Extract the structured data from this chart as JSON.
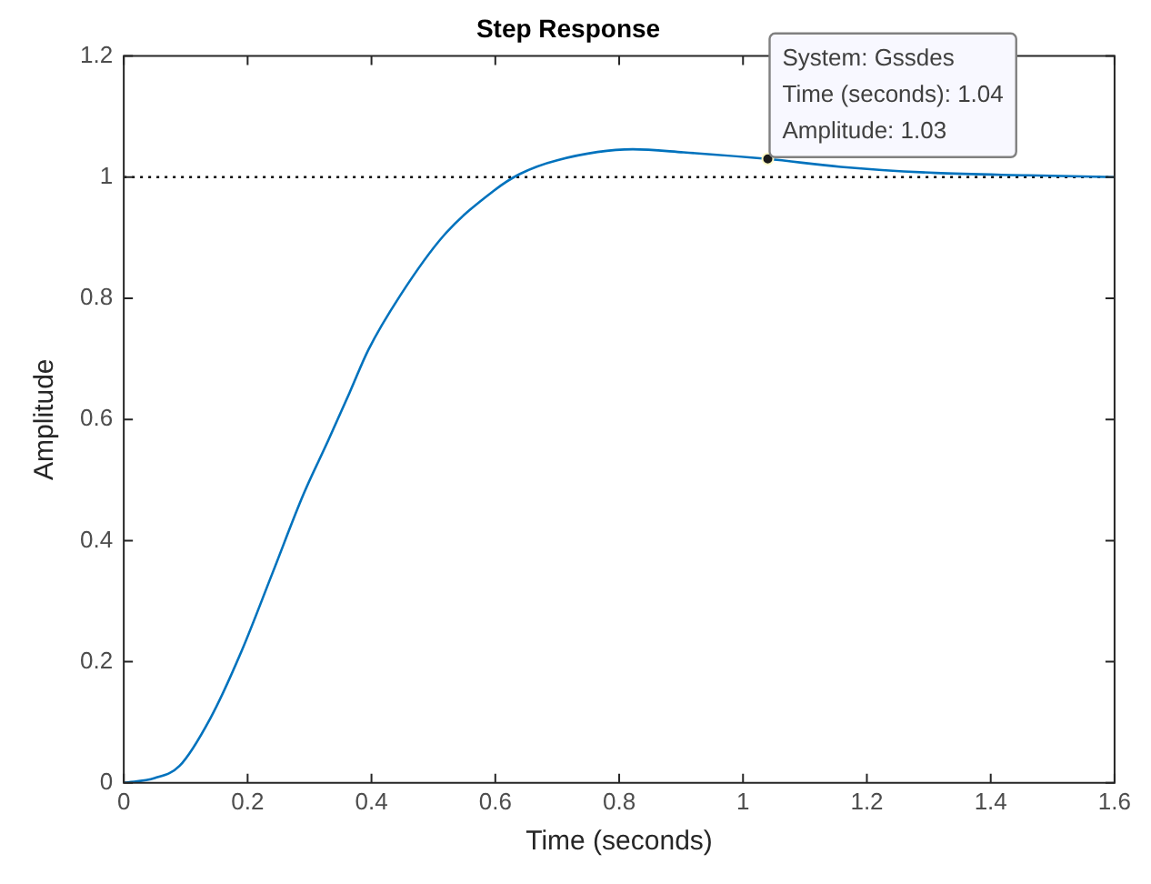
{
  "chart_data": {
    "type": "line",
    "title": "Step Response",
    "xlabel": "Time (seconds)",
    "ylabel": "Amplitude",
    "x": [
      0,
      0.05,
      0.09,
      0.14,
      0.19,
      0.24,
      0.29,
      0.33,
      0.365,
      0.395,
      0.446,
      0.517,
      0.598,
      0.639,
      0.7,
      0.822,
      0.904,
      1.04,
      1.158,
      1.31,
      1.46,
      1.6
    ],
    "series": [
      {
        "color": "#0072bd",
        "values": [
          0,
          0.008,
          0.028,
          0.107,
          0.217,
          0.346,
          0.476,
          0.565,
          0.645,
          0.715,
          0.804,
          0.904,
          0.978,
          1.005,
          1.028,
          1.046,
          1.041,
          1.03,
          1.017,
          1.007,
          1.003,
          1.0
        ]
      }
    ],
    "xlim": [
      0,
      1.6
    ],
    "xticks": [
      0,
      0.2,
      0.4,
      0.6,
      0.8,
      1,
      1.2,
      1.4,
      1.6
    ],
    "ylim": [
      0,
      1.2
    ],
    "yticks": [
      0,
      0.2,
      0.4,
      0.6,
      0.8,
      1,
      1.2
    ],
    "ref_lines": [
      {
        "axis": "y",
        "value": 1,
        "color": "#000000",
        "line_style": "dotted"
      }
    ],
    "annotations": [
      {
        "text": "System: Gssdes\nTime (seconds): 1.04\nAmplitude: 1.03",
        "x": 1.04,
        "y": 1.03
      }
    ],
    "grid": false,
    "legend": false,
    "marker": "none",
    "line_style": "solid"
  }
}
